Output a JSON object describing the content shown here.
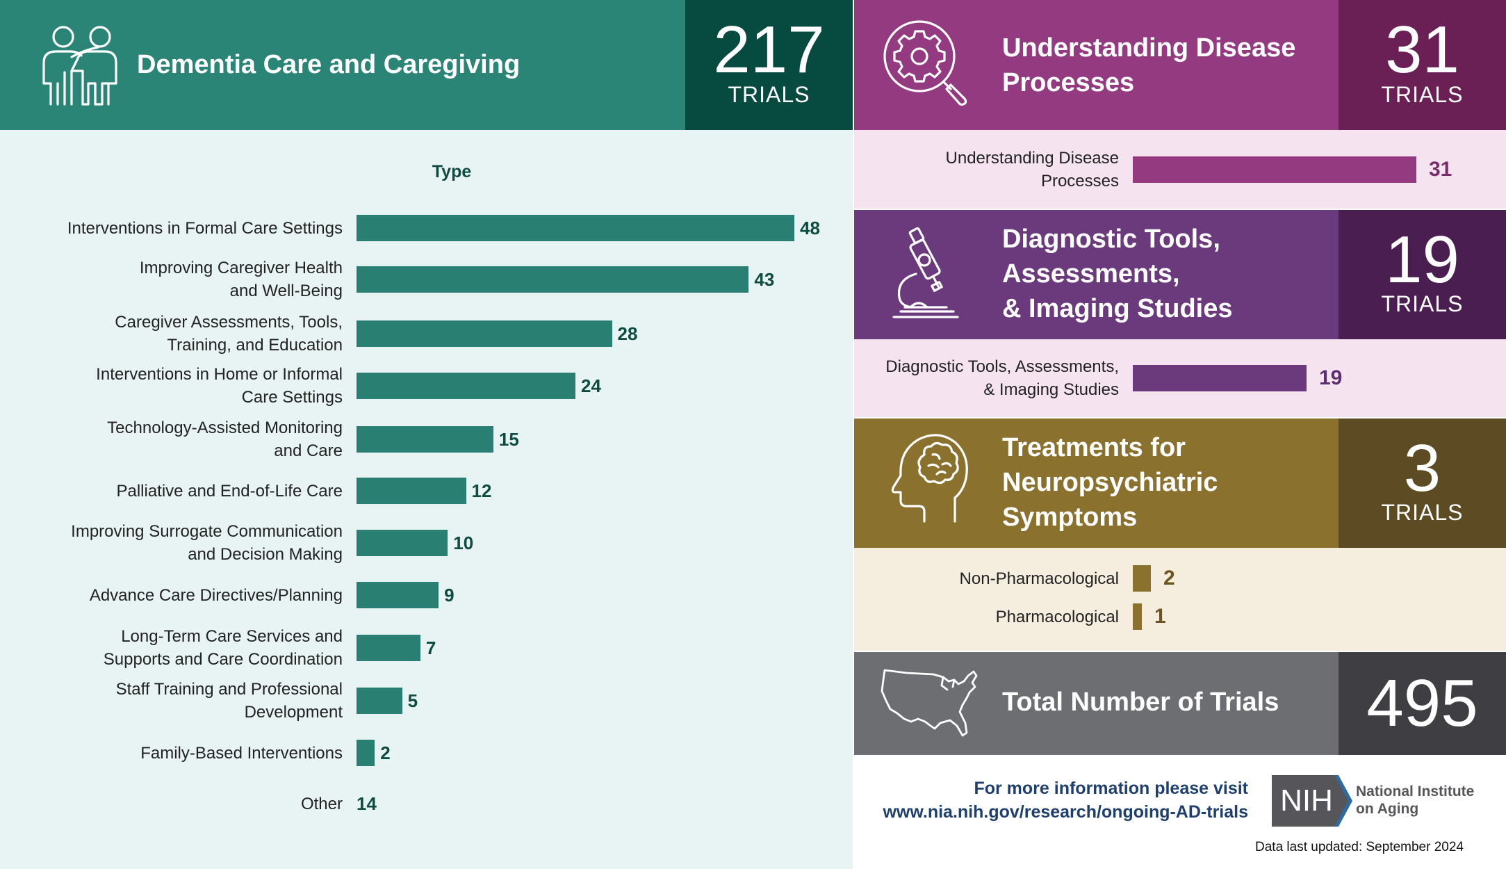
{
  "dementia": {
    "title": "Dementia Care and Caregiving",
    "count": "217",
    "trials_label": "TRIALS",
    "chart_title": "Type",
    "chart_data": {
      "type": "bar",
      "orientation": "horizontal",
      "title": "Type",
      "categories": [
        "Interventions in Formal Care Settings",
        "Improving Caregiver Health and Well-Being",
        "Caregiver Assessments, Tools, Training, and Education",
        "Interventions in Home or Informal Care Settings",
        "Technology-Assisted Monitoring and Care",
        "Palliative and End-of-Life Care",
        "Improving Surrogate Communication and Decision Making",
        "Advance Care Directives/Planning",
        "Long-Term Care Services and Supports and Care Coordination",
        "Staff Training and Professional Development",
        "Family-Based Interventions",
        "Other"
      ],
      "label_lines": [
        [
          "Interventions in Formal Care Settings"
        ],
        [
          "Improving Caregiver Health",
          "and Well-Being"
        ],
        [
          "Caregiver Assessments, Tools,",
          "Training, and Education"
        ],
        [
          "Interventions in Home or Informal",
          "Care Settings"
        ],
        [
          "Technology-Assisted Monitoring",
          "and Care"
        ],
        [
          "Palliative and End-of-Life Care"
        ],
        [
          "Improving Surrogate Communication",
          "and Decision Making"
        ],
        [
          "Advance Care Directives/Planning"
        ],
        [
          "Long-Term Care Services and",
          "Supports and Care Coordination"
        ],
        [
          "Staff Training and Professional",
          "Development"
        ],
        [
          "Family-Based Interventions"
        ],
        [
          "Other"
        ]
      ],
      "values": [
        48,
        43,
        28,
        24,
        15,
        12,
        10,
        9,
        7,
        5,
        2,
        14
      ],
      "bar_drawn": [
        true,
        true,
        true,
        true,
        true,
        true,
        true,
        true,
        true,
        true,
        true,
        false
      ],
      "color": "#2a7f73"
    }
  },
  "disease": {
    "title_lines": [
      "Understanding Disease",
      "Processes"
    ],
    "count": "31",
    "trials_label": "TRIALS",
    "chart_data": {
      "type": "bar",
      "orientation": "horizontal",
      "categories": [
        "Understanding Disease Processes"
      ],
      "label_lines": [
        [
          "Understanding Disease",
          "Processes"
        ]
      ],
      "values": [
        31
      ],
      "color": "#933a80"
    }
  },
  "diagnostic": {
    "title_lines": [
      "Diagnostic Tools,",
      "Assessments,",
      "& Imaging Studies"
    ],
    "count": "19",
    "trials_label": "TRIALS",
    "chart_data": {
      "type": "bar",
      "orientation": "horizontal",
      "categories": [
        "Diagnostic Tools, Assessments, & Imaging Studies"
      ],
      "label_lines": [
        [
          "Diagnostic Tools, Assessments,",
          "& Imaging Studies"
        ]
      ],
      "values": [
        19
      ],
      "color": "#6b3a7c"
    }
  },
  "neuro": {
    "title_lines": [
      "Treatments for",
      "Neuropsychiatric",
      "Symptoms"
    ],
    "count": "3",
    "trials_label": "TRIALS",
    "chart_data": {
      "type": "bar",
      "orientation": "horizontal",
      "categories": [
        "Non-Pharmacological",
        "Pharmacological"
      ],
      "values": [
        2,
        1
      ],
      "color": "#8a712e"
    }
  },
  "total": {
    "title": "Total Number of Trials",
    "count": "495"
  },
  "footer": {
    "visit_line": "For more information please visit",
    "url": "www.nia.nih.gov/research/ongoing-AD-trials",
    "nih_logo_text": "NIH",
    "institute_line1": "National Institute",
    "institute_line2": "on Aging",
    "updated": "Data last updated: September 2024"
  },
  "colors": {
    "dementia_header": "#2a8576",
    "dementia_count_bg": "#074a40",
    "dementia_panel": "#e8f4f3",
    "value_teal": "#0e4b41",
    "disease_header": "#933a80",
    "disease_count_bg": "#6a1f55",
    "disease_value": "#7a2d69",
    "pink_panel": "#f5e4f0",
    "diag_header": "#6b3a7c",
    "diag_count_bg": "#4a1e50",
    "diag_value": "#5c2f6e",
    "neuro_header": "#8a712e",
    "neuro_count_bg": "#5c4b23",
    "neuro_value": "#6b5520",
    "cream_panel": "#f5eedf",
    "total_header": "#6d6e71",
    "total_count_bg": "#3f3f43",
    "footer_blue": "#1f3f6e"
  }
}
